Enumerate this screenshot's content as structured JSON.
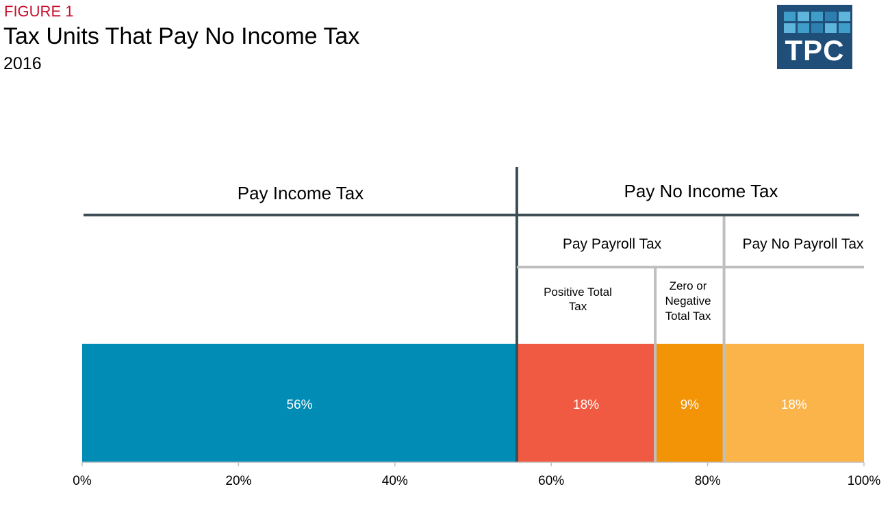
{
  "figure_label": "FIGURE 1",
  "title": "Tax Units That Pay No Income Tax",
  "subtitle": "2016",
  "logo": {
    "text": "TPC",
    "colors": [
      "#3e9ec9",
      "#5fb6dd",
      "#3e9ec9",
      "#2d7fb0",
      "#5fb6dd"
    ]
  },
  "colors": {
    "pay_income_tax": "#008cb4",
    "positive_total_tax": "#f15a42",
    "zero_or_negative_total_tax": "#f29406",
    "pay_no_payroll_tax": "#fbb44a",
    "bracket_dark": "#3d4d55",
    "bracket_light": "#bfbfbf"
  },
  "chart_data": {
    "type": "bar",
    "orientation": "horizontal-stacked",
    "segments": [
      {
        "label": "56%",
        "value": 55.6,
        "color": "#008cb4"
      },
      {
        "label": "18%",
        "value": 17.7,
        "color": "#f15a42"
      },
      {
        "label": "9%",
        "value": 8.8,
        "color": "#f29406"
      },
      {
        "label": "18%",
        "value": 17.9,
        "color": "#fbb44a"
      }
    ],
    "xlim": [
      0,
      100
    ],
    "x_ticks": [
      "0%",
      "20%",
      "40%",
      "60%",
      "80%",
      "100%"
    ],
    "grid": false,
    "annotations": {
      "pay_income_tax": "Pay Income Tax",
      "pay_no_income_tax": "Pay No Income Tax",
      "pay_payroll_tax": "Pay  Payroll Tax",
      "pay_no_payroll_tax": "Pay No Payroll Tax",
      "positive_total_tax": [
        "Positive Total",
        "Tax"
      ],
      "zero_or_negative_total_tax": [
        "Zero or",
        "Negative",
        "Total Tax"
      ]
    }
  }
}
